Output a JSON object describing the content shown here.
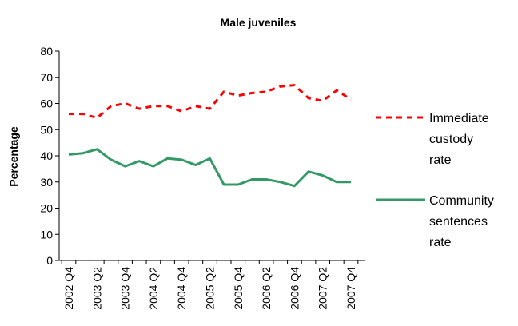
{
  "chart_data": {
    "type": "line",
    "title": "Male juveniles",
    "xlabel": "",
    "ylabel": "Percentage",
    "ylim": [
      0,
      80
    ],
    "yticks": [
      0,
      10,
      20,
      30,
      40,
      50,
      60,
      70,
      80
    ],
    "grid": false,
    "legend_position": "right",
    "x": [
      "2002 Q4",
      "2003 Q1",
      "2003 Q2",
      "2003 Q3",
      "2003 Q4",
      "2004 Q1",
      "2004 Q2",
      "2004 Q3",
      "2004 Q4",
      "2005 Q1",
      "2005 Q2",
      "2005 Q3",
      "2005 Q4",
      "2006 Q1",
      "2006 Q2",
      "2006 Q3",
      "2006 Q4",
      "2007 Q1",
      "2007 Q2",
      "2007 Q3",
      "2007 Q4"
    ],
    "x_tick_labels": [
      "2002 Q4",
      "2003 Q2",
      "2003 Q4",
      "2004 Q2",
      "2004 Q4",
      "2005 Q2",
      "2005 Q4",
      "2006 Q2",
      "2006 Q4",
      "2007 Q2",
      "2007 Q4"
    ],
    "series": [
      {
        "name": "Immediate custody rate",
        "legend_lines": [
          "Immediate",
          "custody",
          "rate"
        ],
        "color": "#ff0000",
        "style": "dashed",
        "values": [
          56,
          56,
          54.5,
          59,
          60,
          58,
          59,
          59,
          57,
          59,
          58,
          64.5,
          63,
          64,
          64.5,
          66.5,
          67,
          62,
          61,
          65,
          61.5
        ]
      },
      {
        "name": "Community sentences rate",
        "legend_lines": [
          "Community",
          "sentences",
          "rate"
        ],
        "color": "#339966",
        "style": "solid",
        "values": [
          40.5,
          41,
          42.5,
          38.5,
          36,
          38,
          36,
          39,
          38.5,
          36.5,
          39,
          29,
          29,
          31,
          31,
          30,
          28.5,
          34,
          32.5,
          30,
          30
        ]
      }
    ]
  }
}
